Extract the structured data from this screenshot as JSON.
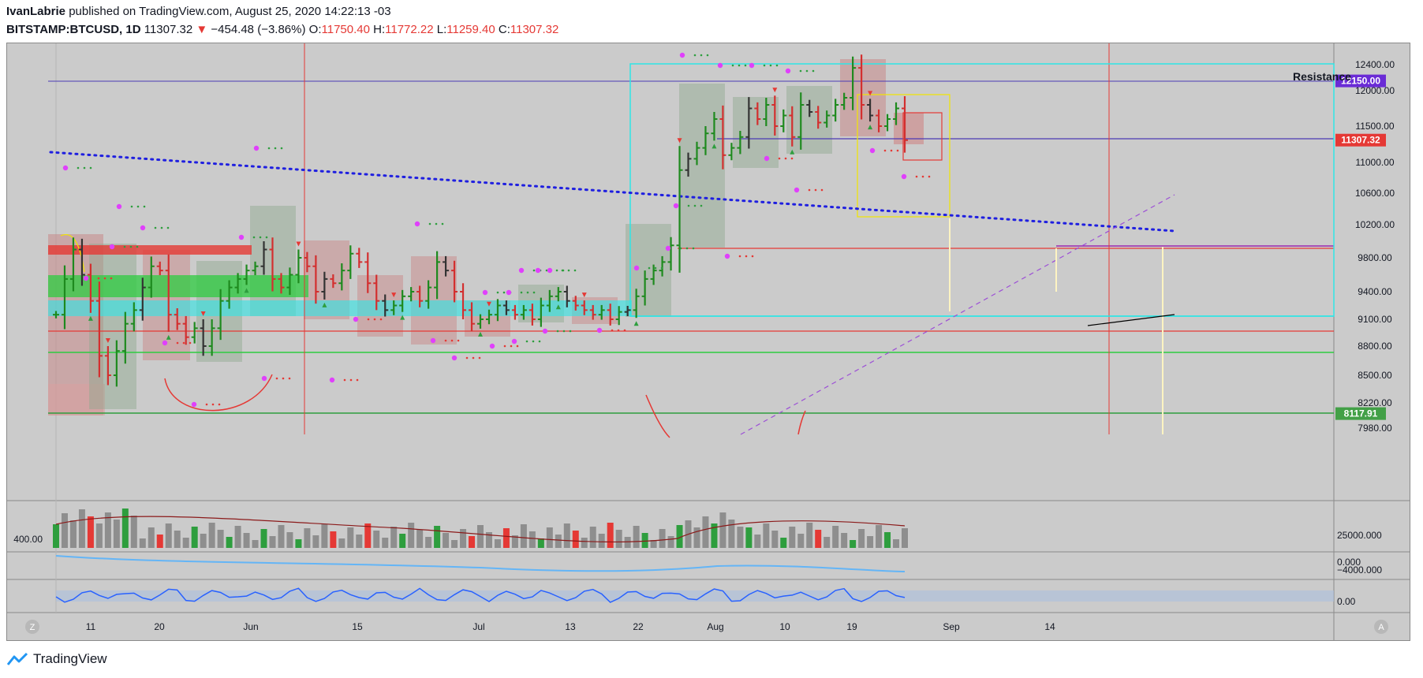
{
  "header": {
    "author": "IvanLabrie",
    "published": "published on TradingView.com, August 25, 2020 14:22:13 -03",
    "symbol": "BITSTAMP:BTCUSD, 1D",
    "last": "11307.32",
    "change": "−454.48 (−3.86%)",
    "o_label": "O:",
    "o_value": "11750.40",
    "h_label": "H:",
    "h_value": "11772.22",
    "l_label": "L:",
    "l_value": "11259.40",
    "c_label": "C:",
    "c_value": "11307.32"
  },
  "footer": {
    "brand": "TradingView"
  },
  "chart_data": {
    "type": "bar",
    "title": "",
    "price_axis_ticks": [
      12400,
      12000,
      11500,
      11000,
      10600,
      10200,
      9800,
      9400,
      9100,
      8800,
      8500,
      8220,
      7980
    ],
    "price_axis_labels": [
      "12400.00",
      "12000.00",
      "11500.00",
      "11000.00",
      "10600.00",
      "10200.00",
      "9800.00",
      "9400.00",
      "9100.00",
      "8800.00",
      "8500.00",
      "8220.00",
      "7980.00"
    ],
    "time_axis_labels": [
      "11",
      "20",
      "Jun",
      "15",
      "Jul",
      "13",
      "22",
      "Aug",
      "10",
      "19",
      "Sep",
      "14"
    ],
    "price_badges": [
      {
        "label": "12150.00",
        "price": 12150,
        "color": "#6a2bd6"
      },
      {
        "label": "11307.32",
        "price": 11307.32,
        "color": "#e53935"
      },
      {
        "label": "8117.91",
        "price": 8117.91,
        "color": "#43a047"
      }
    ],
    "annotations": [
      "Resistance"
    ],
    "volume_pane": {
      "left_label": "400.00",
      "ticks": [
        "25000.000",
        "0.000"
      ]
    },
    "oscillator_pane_1": {
      "ticks": [
        "−4000.000"
      ]
    },
    "oscillator_pane_2": {
      "ticks": [
        "0.00"
      ]
    },
    "ohlc_last": {
      "open": 11750.4,
      "high": 11772.22,
      "low": 11259.4,
      "close": 11307.32,
      "change": -454.48,
      "change_pct": -3.86
    },
    "close_path": [
      9150,
      9550,
      9900,
      9600,
      9300,
      8700,
      8500,
      8750,
      9050,
      9200,
      9450,
      9700,
      9650,
      9150,
      9050,
      8900,
      9000,
      8800,
      9000,
      9300,
      9450,
      9550,
      9650,
      9700,
      9900,
      9550,
      9450,
      9600,
      9800,
      9700,
      9400,
      9550,
      9500,
      9650,
      9850,
      9750,
      9500,
      9300,
      9200,
      9250,
      9350,
      9400,
      9300,
      9450,
      9750,
      9650,
      9400,
      9200,
      9050,
      9100,
      9150,
      9250,
      9200,
      9150,
      9200,
      9100,
      9250,
      9350,
      9400,
      9300,
      9250,
      9200,
      9150,
      9200,
      9100,
      9180,
      9200,
      9350,
      9550,
      9650,
      9750,
      9950,
      10900,
      11050,
      11200,
      11400,
      11600,
      11100,
      11200,
      11350,
      11750,
      11600,
      11800,
      11500,
      11650,
      11350,
      11800,
      11700,
      11550,
      11650,
      11800,
      11900,
      12350,
      11800,
      11650,
      11500,
      11600,
      11750,
      11307
    ]
  }
}
